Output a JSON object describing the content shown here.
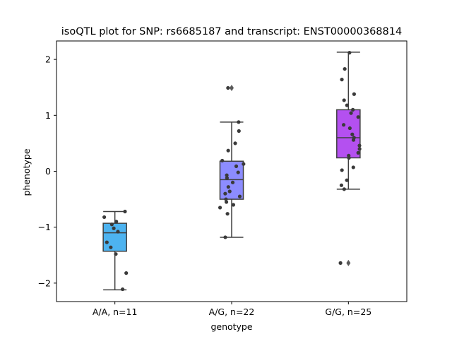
{
  "chart_data": {
    "type": "box",
    "title": "isoQTL plot for SNP: rs6685187 and transcript: ENST00000368814",
    "xlabel": "genotype",
    "ylabel": "phenotype",
    "ylim": [
      -2.33,
      2.33
    ],
    "yticks": [
      2,
      1,
      0,
      -1,
      -2
    ],
    "ytick_labels": [
      "2",
      "1",
      "0",
      "−1",
      "−2"
    ],
    "grid": false,
    "categories": [
      "A/A, n=11",
      "A/G, n=22",
      "G/G, n=25"
    ],
    "boxes": [
      {
        "color": "#4db3f0",
        "q1": -1.43,
        "median": -1.1,
        "q3": -0.93,
        "whisker_low": -2.12,
        "whisker_high": -0.72,
        "fliers": []
      },
      {
        "color": "#8c8cff",
        "q1": -0.5,
        "median": -0.15,
        "q3": 0.18,
        "whisker_low": -1.18,
        "whisker_high": 0.88,
        "fliers": [
          1.49
        ]
      },
      {
        "color": "#b450f0",
        "q1": 0.24,
        "median": 0.6,
        "q3": 1.1,
        "whisker_low": -0.32,
        "whisker_high": 2.13,
        "fliers": [
          -1.64
        ]
      }
    ],
    "points": [
      {
        "category": 0,
        "values": [
          -0.72,
          -0.82,
          -0.9,
          -0.95,
          -1.02,
          -1.08,
          -1.27,
          -1.36,
          -1.48,
          -1.82,
          -2.11
        ]
      },
      {
        "category": 1,
        "values": [
          1.49,
          0.88,
          0.72,
          0.5,
          0.37,
          0.19,
          0.13,
          0.09,
          -0.02,
          -0.07,
          -0.12,
          -0.2,
          -0.28,
          -0.36,
          -0.4,
          -0.45,
          -0.5,
          -0.55,
          -0.6,
          -0.65,
          -0.76,
          -1.18
        ]
      },
      {
        "category": 2,
        "values": [
          2.12,
          1.83,
          1.64,
          1.38,
          1.27,
          1.18,
          1.1,
          1.04,
          0.97,
          0.83,
          0.77,
          0.66,
          0.6,
          0.56,
          0.46,
          0.4,
          0.33,
          0.28,
          0.24,
          0.07,
          0.02,
          -0.16,
          -0.25,
          -0.32,
          -1.64
        ]
      }
    ]
  }
}
